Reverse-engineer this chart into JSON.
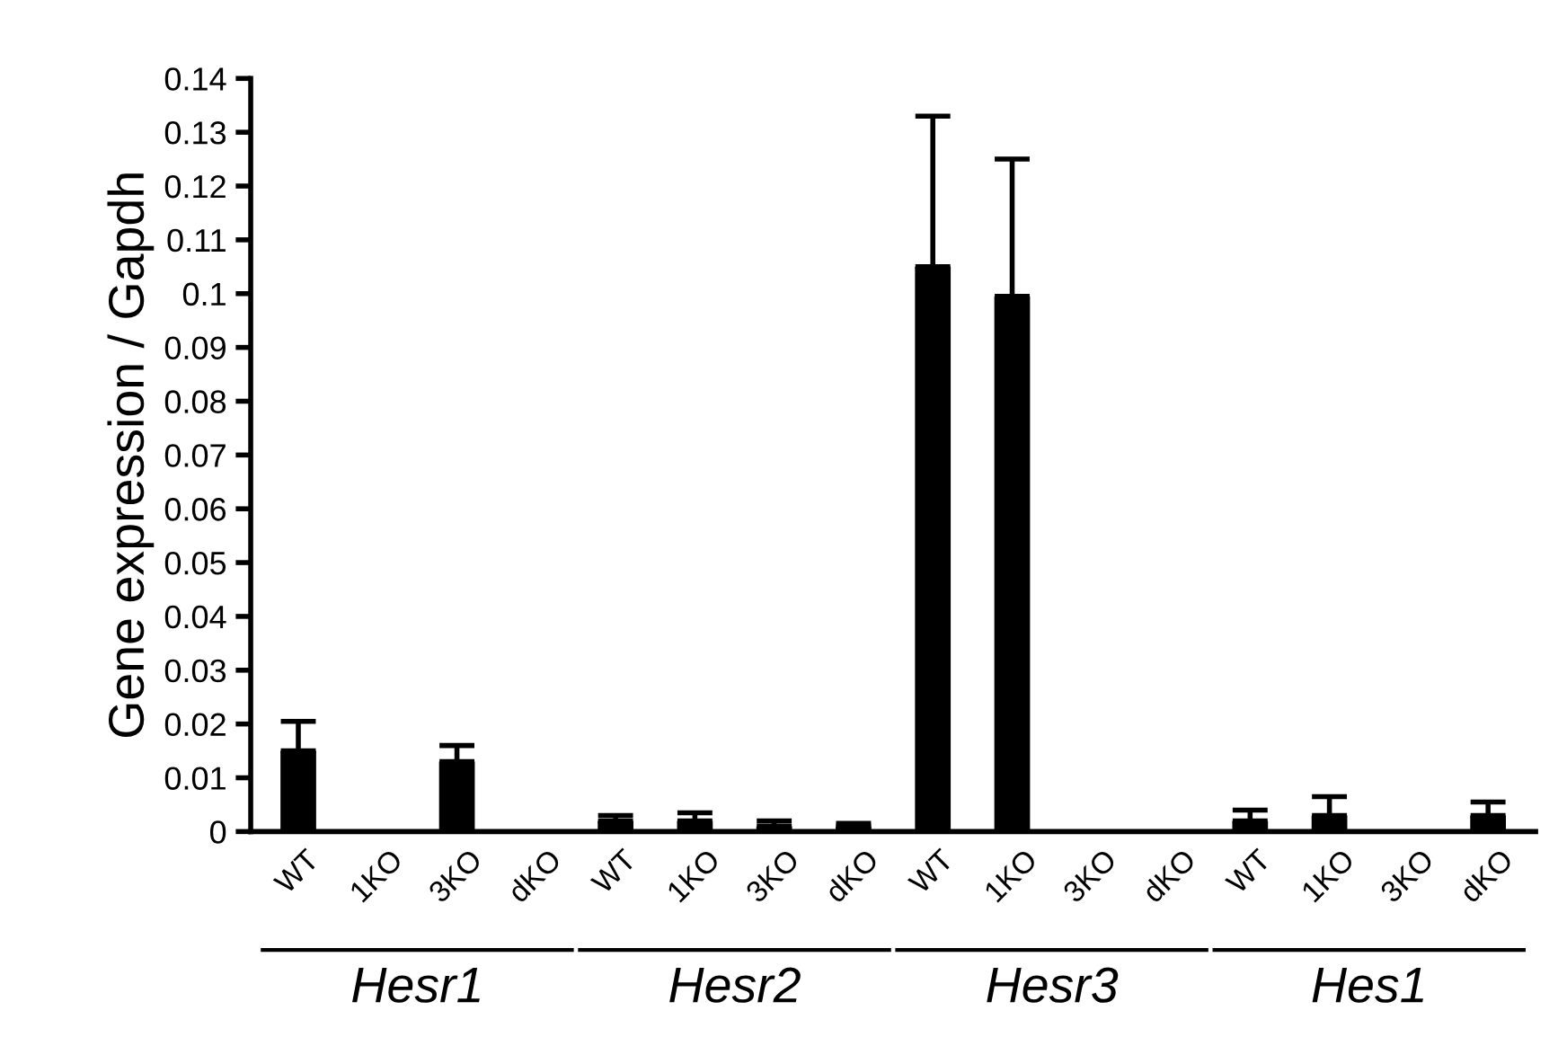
{
  "chart_data": {
    "type": "bar",
    "ylabel": "Gene expression / Gapdh",
    "categories": [
      "WT",
      "1KO",
      "3KO",
      "dKO",
      "WT",
      "1KO",
      "3KO",
      "dKO",
      "WT",
      "1KO",
      "3KO",
      "dKO",
      "WT",
      "1KO",
      "3KO",
      "dKO"
    ],
    "series": [
      {
        "color": "#000000",
        "values": [
          0.015,
          0,
          0.013,
          0,
          0.002,
          0.002,
          0.001,
          0.001,
          0.105,
          0.0995,
          0,
          0,
          0.002,
          0.003,
          0,
          0.003
        ],
        "errors": [
          0.0055,
          null,
          0.003,
          null,
          0.001,
          0.0015,
          0.001,
          0.0005,
          0.028,
          0.0255,
          null,
          null,
          0.002,
          0.0035,
          null,
          0.0025
        ]
      }
    ],
    "ylim": [
      0,
      0.14
    ],
    "yticks": [
      0,
      0.01,
      0.02,
      0.03,
      0.04,
      0.05,
      0.06,
      0.07,
      0.08,
      0.09,
      0.1,
      0.11,
      0.12,
      0.13,
      0.14
    ],
    "annotations": [
      "Hesr1",
      "Hesr2",
      "Hesr3",
      "Hes1"
    ],
    "grid": false,
    "legend": false
  }
}
